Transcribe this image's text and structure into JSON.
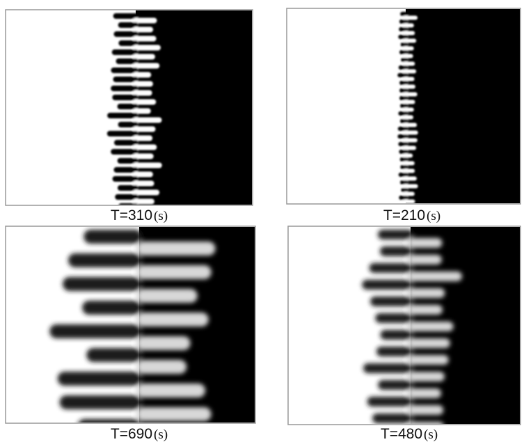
{
  "panels": [
    {
      "time_label": "T=310",
      "unit": "(s)"
    },
    {
      "time_label": "T=210",
      "unit": "(s)"
    },
    {
      "time_label": "T=690",
      "unit": "(s)"
    },
    {
      "time_label": "T=480",
      "unit": "(s)"
    }
  ]
}
